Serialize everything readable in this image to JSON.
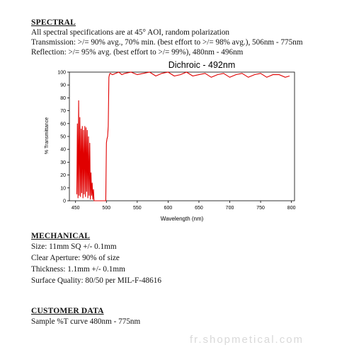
{
  "spectral": {
    "heading": "SPECTRAL",
    "lines": [
      "All spectral specifications are at 45° AOI, random polarization",
      "Transmission: >/= 90% avg., 70% min. (best effort to >/= 98% avg.), 506nm - 775nm",
      "Reflection: >/= 95% avg. (best effort to >/= 99%), 480nm - 496nm"
    ]
  },
  "chart_data": {
    "type": "line",
    "title": "Dichroic - 492nm",
    "xlabel": "Wavelength (nm)",
    "ylabel": "% Transmittance",
    "xlim": [
      440,
      805
    ],
    "ylim": [
      0,
      100
    ],
    "x_ticks": [
      450,
      500,
      550,
      600,
      650,
      700,
      750,
      800
    ],
    "y_ticks": [
      0,
      10,
      20,
      30,
      40,
      50,
      60,
      70,
      80,
      90,
      100
    ],
    "grid": false,
    "color": "#e00000",
    "series": [
      {
        "x": [
          452,
          453,
          454,
          455,
          456,
          457,
          458,
          459,
          460,
          461,
          462,
          463,
          464,
          465,
          466,
          467,
          468,
          469,
          470,
          471,
          472,
          473,
          474,
          475,
          476,
          477,
          478,
          479,
          480,
          482,
          485,
          490,
          495,
          499,
          500,
          501,
          502,
          503,
          504,
          505,
          506,
          510,
          515,
          520,
          525,
          530,
          540,
          550,
          560,
          570,
          580,
          590,
          600,
          610,
          620,
          630,
          640,
          650,
          660,
          670,
          680,
          690,
          700,
          710,
          720,
          730,
          740,
          750,
          760,
          770,
          780,
          790,
          797
        ],
        "y": [
          5,
          60,
          2,
          78,
          4,
          65,
          3,
          56,
          6,
          58,
          2,
          55,
          5,
          58,
          3,
          57,
          7,
          55,
          2,
          50,
          4,
          45,
          1,
          22,
          4,
          14,
          1,
          9,
          0,
          0,
          0,
          0,
          0,
          0,
          45,
          48,
          50,
          58,
          96,
          98,
          99,
          98,
          99,
          100,
          98,
          99,
          100,
          98,
          99,
          100,
          97,
          99,
          100,
          97,
          98,
          100,
          97,
          98,
          99,
          96,
          98,
          99,
          96,
          98,
          99,
          96,
          98,
          99,
          96,
          98,
          98,
          96,
          97
        ]
      }
    ]
  },
  "mechanical": {
    "heading": "MECHANICAL",
    "lines": [
      "Size: 11mm SQ +/- 0.1mm",
      "Clear Aperture:  90% of size",
      "Thickness: 1.1mm +/- 0.1mm",
      "Surface Quality: 80/50 per MIL-F-48616"
    ]
  },
  "customer": {
    "heading": "CUSTOMER DATA",
    "lines": [
      "Sample %T curve 480nm - 775nm"
    ]
  },
  "watermark": "fr.shopmetical.com"
}
